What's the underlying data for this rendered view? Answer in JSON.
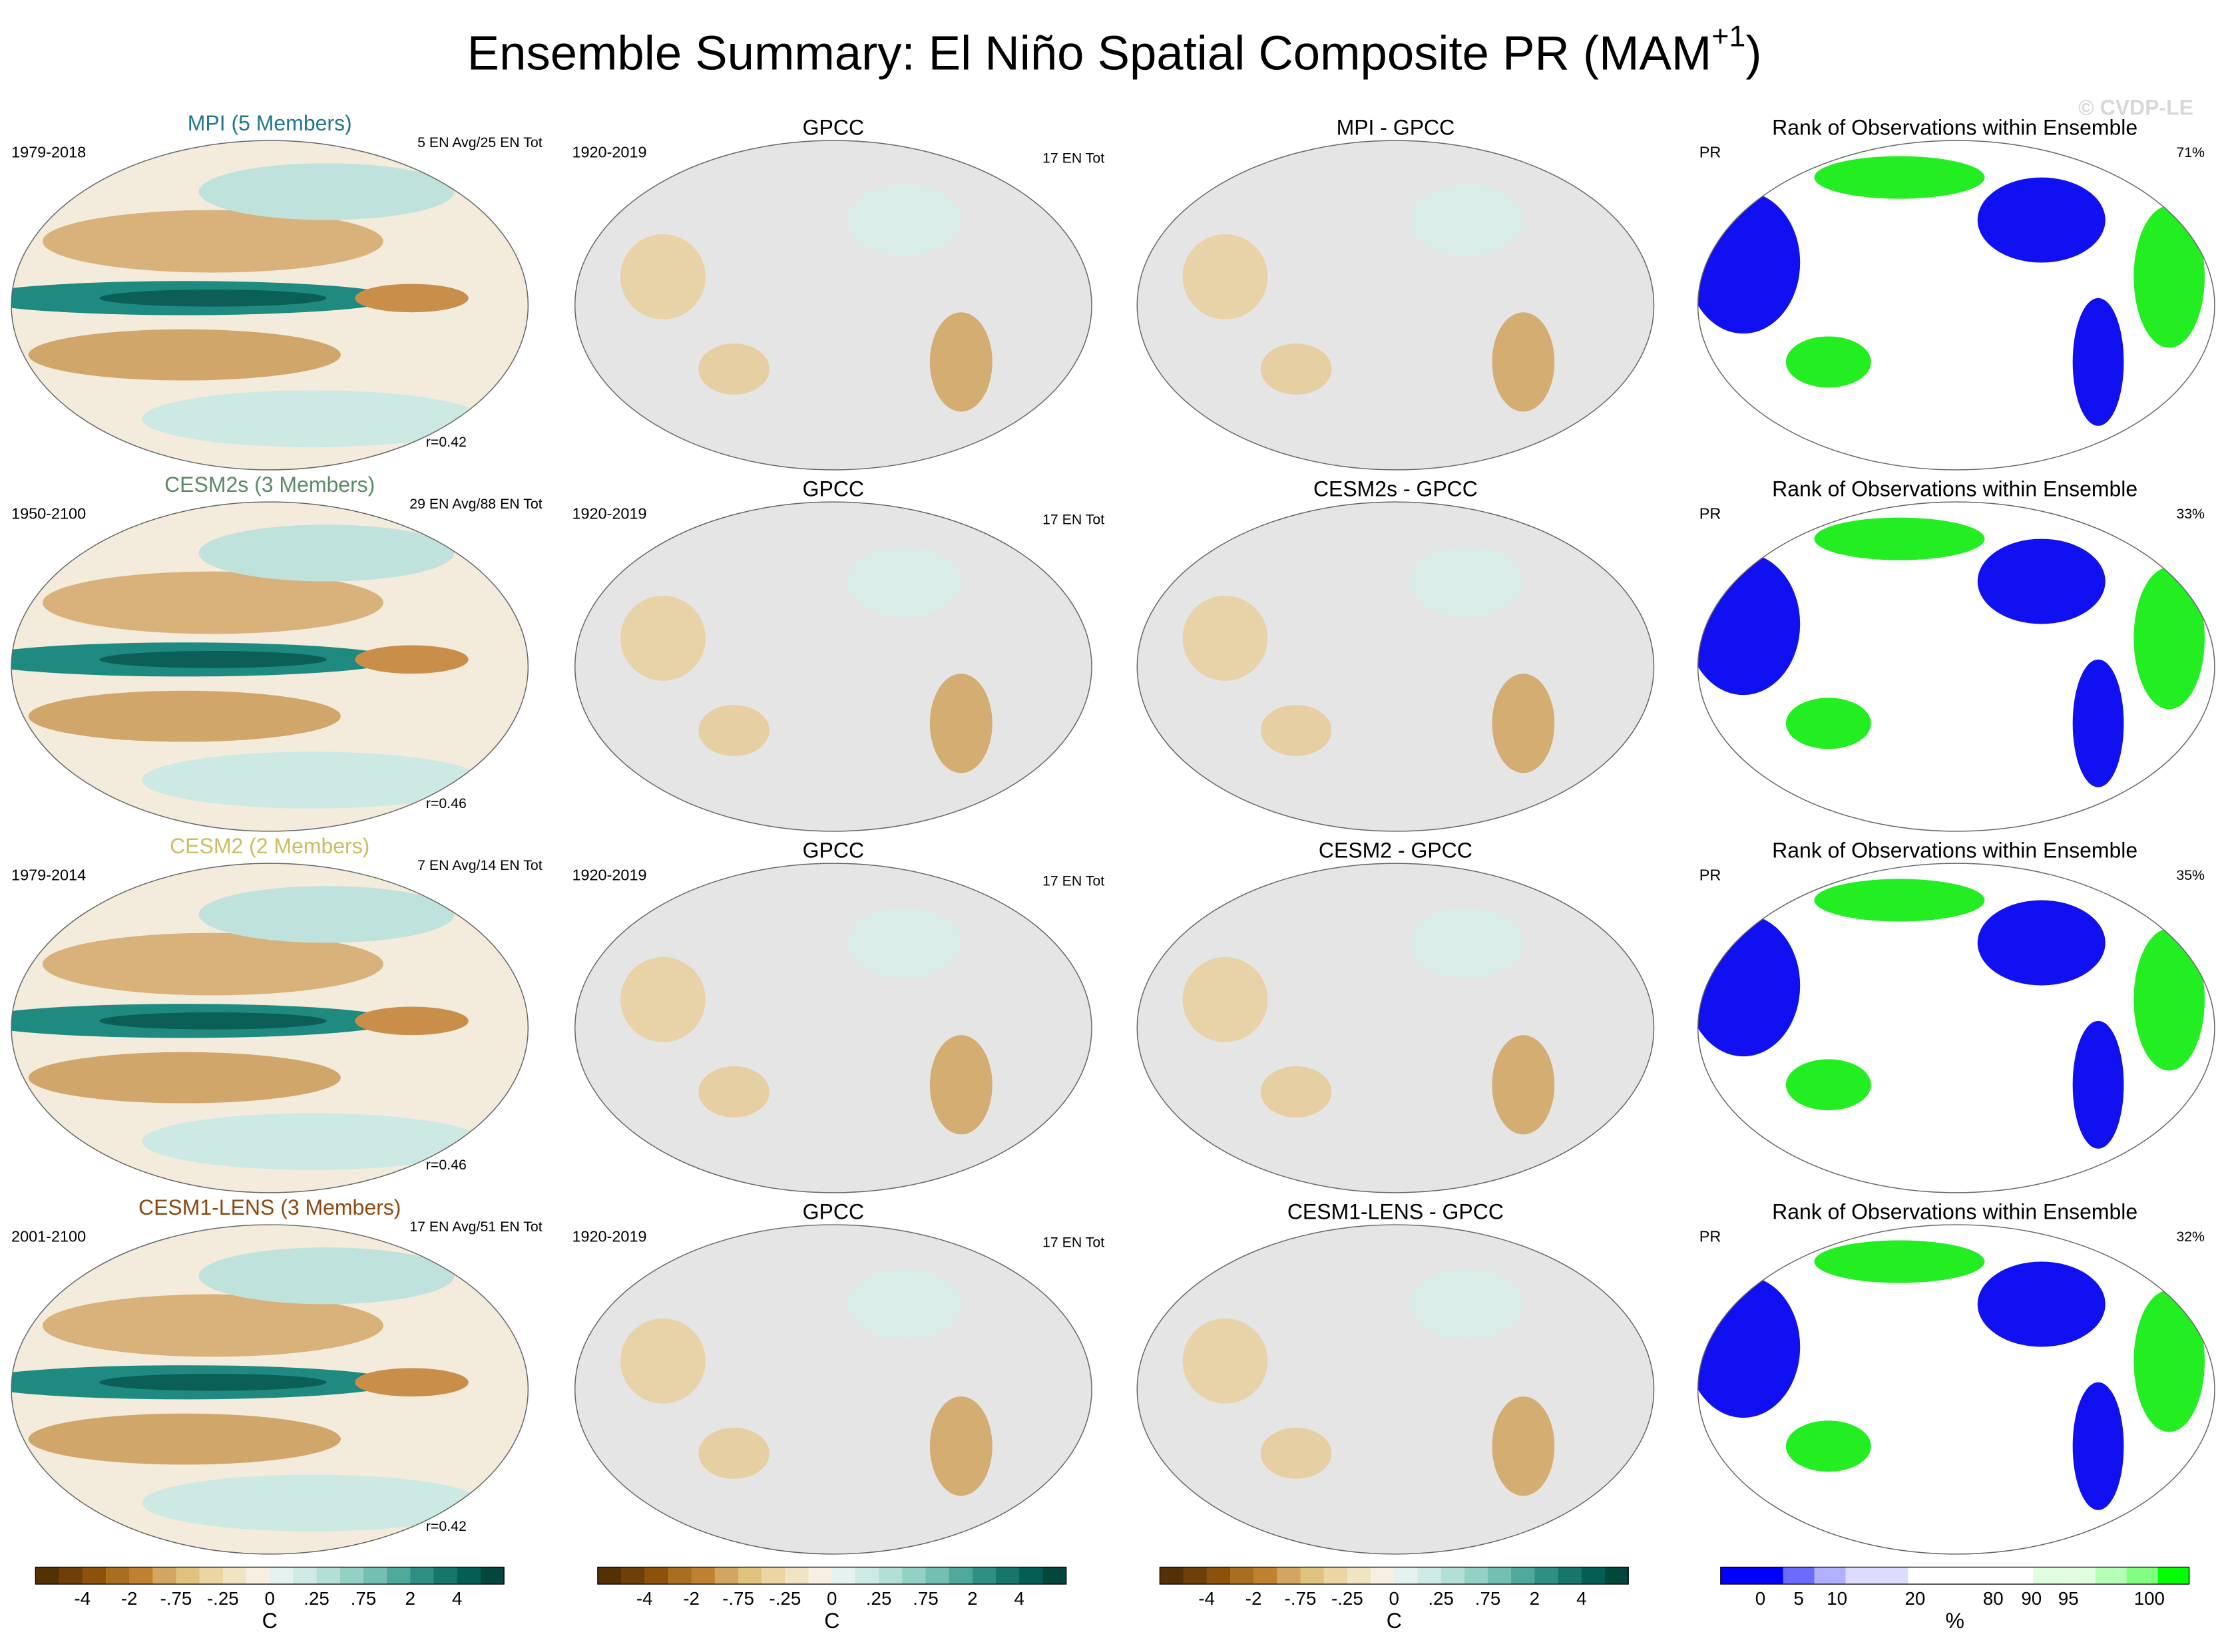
{
  "title": {
    "main": "Ensemble Summary: El Niño Spatial Composite PR (MAM",
    "superscript": "+1",
    "end": ")"
  },
  "copyright": "© CVDP-LE",
  "rows": [
    {
      "model": {
        "title": "MPI (5 Members)",
        "color": "#23798a",
        "years": "1979-2018",
        "counts": "5 EN Avg/25 EN Tot",
        "r": "r=0.42"
      },
      "obs": {
        "title": "GPCC",
        "years": "1920-2019",
        "counts": "17 EN Tot"
      },
      "diff": {
        "title": "MPI - GPCC"
      },
      "rank": {
        "title": "Rank of Observations within Ensemble",
        "variable": "PR",
        "percent": "71%"
      }
    },
    {
      "model": {
        "title": "CESM2s (3 Members)",
        "color": "#5b8a66",
        "years": "1950-2100",
        "counts": "29 EN Avg/88 EN Tot",
        "r": "r=0.46"
      },
      "obs": {
        "title": "GPCC",
        "years": "1920-2019",
        "counts": "17 EN Tot"
      },
      "diff": {
        "title": "CESM2s - GPCC"
      },
      "rank": {
        "title": "Rank of Observations within Ensemble",
        "variable": "PR",
        "percent": "33%"
      }
    },
    {
      "model": {
        "title": "CESM2 (2 Members)",
        "color": "#cdbd62",
        "years": "1979-2014",
        "counts": "7 EN Avg/14 EN Tot",
        "r": "r=0.46"
      },
      "obs": {
        "title": "GPCC",
        "years": "1920-2019",
        "counts": "17 EN Tot"
      },
      "diff": {
        "title": "CESM2 - GPCC"
      },
      "rank": {
        "title": "Rank of Observations within Ensemble",
        "variable": "PR",
        "percent": "35%"
      }
    },
    {
      "model": {
        "title": "CESM1-LENS (3 Members)",
        "color": "#8b4a12",
        "years": "2001-2100",
        "counts": "17 EN Avg/51 EN Tot",
        "r": "r=0.42"
      },
      "obs": {
        "title": "GPCC",
        "years": "1920-2019",
        "counts": "17 EN Tot"
      },
      "diff": {
        "title": "CESM1-LENS - GPCC"
      },
      "rank": {
        "title": "Rank of Observations within Ensemble",
        "variable": "PR",
        "percent": "32%"
      }
    }
  ],
  "colorbars": [
    {
      "labels": [
        "-4",
        "-2",
        "-.75",
        "-.25",
        "0",
        ".25",
        ".75",
        "2",
        "4"
      ],
      "unit": "C"
    },
    {
      "labels": [
        "-4",
        "-2",
        "-.75",
        "-.25",
        "0",
        ".25",
        ".75",
        "2",
        "4"
      ],
      "unit": "C"
    },
    {
      "labels": [
        "-4",
        "-2",
        "-.75",
        "-.25",
        "0",
        ".25",
        ".75",
        "2",
        "4"
      ],
      "unit": "C"
    },
    {
      "labels": [
        "0",
        "5",
        "10",
        "20",
        "80",
        "90",
        "95",
        "100"
      ],
      "unit": "%"
    }
  ]
}
